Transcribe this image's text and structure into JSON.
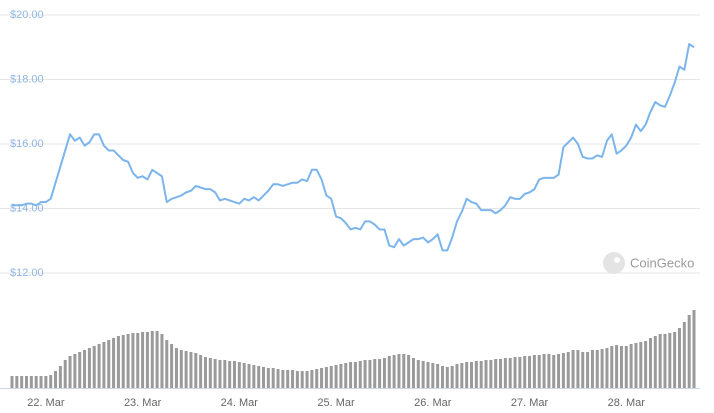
{
  "chart_data": {
    "type": "line",
    "categories": [
      null,
      null,
      null,
      null,
      null,
      null,
      null,
      "22. Mar",
      null,
      null,
      null,
      null,
      null,
      null,
      null,
      null,
      null,
      null,
      null,
      null,
      null,
      null,
      null,
      null,
      null,
      null,
      null,
      "23. Mar",
      null,
      null,
      null,
      null,
      null,
      null,
      null,
      null,
      null,
      null,
      null,
      null,
      null,
      null,
      null,
      null,
      null,
      null,
      null,
      "24. Mar",
      null,
      null,
      null,
      null,
      null,
      null,
      null,
      null,
      null,
      null,
      null,
      null,
      null,
      null,
      null,
      null,
      null,
      null,
      null,
      "25. Mar",
      null,
      null,
      null,
      null,
      null,
      null,
      null,
      null,
      null,
      null,
      null,
      null,
      null,
      null,
      null,
      null,
      null,
      null,
      null,
      "26. Mar",
      null,
      null,
      null,
      null,
      null,
      null,
      null,
      null,
      null,
      null,
      null,
      null,
      null,
      null,
      null,
      null,
      null,
      null,
      null,
      "27. Mar",
      null,
      null,
      null,
      null,
      null,
      null,
      null,
      null,
      null,
      null,
      null,
      null,
      null,
      null,
      null,
      null,
      null,
      null,
      null,
      "28. Mar",
      null,
      null,
      null,
      null,
      null,
      null,
      null,
      null,
      null,
      null,
      null,
      null,
      null,
      null
    ],
    "series": [
      {
        "type": "line",
        "color": "#7cb5ec",
        "values": [
          14.1,
          14.1,
          14.1,
          14.15,
          14.15,
          14.1,
          14.2,
          14.2,
          14.3,
          14.8,
          15.3,
          15.8,
          16.3,
          16.1,
          16.2,
          15.95,
          16.05,
          16.3,
          16.3,
          15.95,
          15.8,
          15.8,
          15.65,
          15.5,
          15.45,
          15.1,
          14.95,
          15.0,
          14.9,
          15.2,
          15.1,
          15.0,
          14.2,
          14.3,
          14.35,
          14.4,
          14.5,
          14.55,
          14.7,
          14.65,
          14.6,
          14.6,
          14.5,
          14.25,
          14.3,
          14.25,
          14.2,
          14.15,
          14.3,
          14.25,
          14.35,
          14.25,
          14.4,
          14.55,
          14.75,
          14.75,
          14.7,
          14.75,
          14.8,
          14.8,
          14.9,
          14.85,
          15.2,
          15.2,
          14.9,
          14.4,
          14.3,
          13.75,
          13.7,
          13.55,
          13.35,
          13.4,
          13.35,
          13.6,
          13.6,
          13.5,
          13.35,
          13.35,
          12.85,
          12.8,
          13.05,
          12.85,
          12.95,
          13.05,
          13.05,
          13.1,
          12.95,
          13.05,
          13.2,
          12.7,
          12.7,
          13.1,
          13.6,
          13.9,
          14.3,
          14.2,
          14.15,
          13.95,
          13.95,
          13.95,
          13.85,
          13.95,
          14.1,
          14.35,
          14.3,
          14.3,
          14.45,
          14.5,
          14.6,
          14.9,
          14.95,
          14.95,
          14.95,
          15.05,
          15.9,
          16.05,
          16.2,
          16.0,
          15.6,
          15.55,
          15.55,
          15.65,
          15.6,
          16.1,
          16.3,
          15.7,
          15.8,
          15.95,
          16.2,
          16.6,
          16.4,
          16.6,
          17.0,
          17.3,
          17.2,
          17.15,
          17.5,
          17.9,
          18.4,
          18.3,
          19.1,
          19.0
        ]
      },
      {
        "type": "bar",
        "axis": "y2",
        "color": "#9a9a9a",
        "values": [
          12,
          12,
          12,
          12,
          12,
          12,
          12,
          12,
          13,
          17,
          22,
          28,
          32,
          34,
          36,
          38,
          40,
          42,
          44,
          46,
          48,
          50,
          52,
          53,
          54,
          55,
          55,
          56,
          56,
          57,
          57,
          54,
          48,
          44,
          40,
          38,
          37,
          36,
          35,
          33,
          31,
          30,
          29,
          28,
          28,
          27,
          27,
          26,
          25,
          24,
          23,
          22,
          21,
          20,
          20,
          19,
          18,
          18,
          18,
          17,
          17,
          17,
          18,
          19,
          20,
          21,
          22,
          23,
          24,
          25,
          26,
          26,
          27,
          28,
          28,
          29,
          29,
          30,
          32,
          33,
          34,
          34,
          33,
          30,
          28,
          27,
          26,
          25,
          24,
          22,
          21,
          22,
          24,
          25,
          26,
          26,
          27,
          27,
          28,
          28,
          29,
          29,
          30,
          30,
          31,
          31,
          32,
          32,
          33,
          33,
          34,
          34,
          33,
          34,
          35,
          36,
          38,
          38,
          36,
          36,
          38,
          38,
          39,
          40,
          42,
          43,
          42,
          42,
          44,
          45,
          46,
          47,
          50,
          52,
          54,
          54,
          55,
          56,
          60,
          66,
          73,
          78
        ]
      }
    ],
    "ylim": [
      12,
      20
    ],
    "yticks": [
      {
        "value": 12,
        "label": "$12.00"
      },
      {
        "value": 14,
        "label": "$14.00"
      },
      {
        "value": 16,
        "label": "$16.00"
      },
      {
        "value": 18,
        "label": "$18.00"
      },
      {
        "value": 20,
        "label": "$20.00"
      }
    ],
    "y2lim": [
      0,
      100
    ],
    "grid": true,
    "watermark": "CoinGecko"
  }
}
